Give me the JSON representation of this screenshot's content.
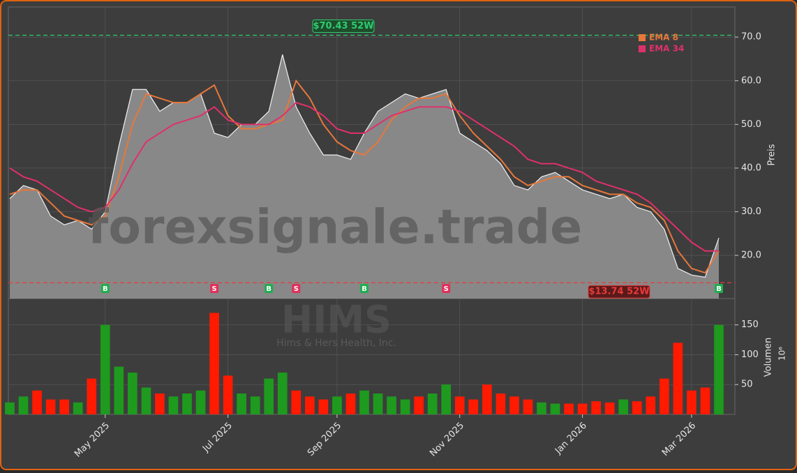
{
  "chart_data": {
    "type": "line",
    "watermark": "forexsignale.trade",
    "symbol": "HIMS",
    "company": "Hims & Hers Health, Inc.",
    "ylabel": "Preis",
    "categories": [
      null,
      null,
      null,
      null,
      null,
      null,
      null,
      "May 2025",
      null,
      null,
      null,
      null,
      null,
      null,
      null,
      null,
      "Jul 2025",
      null,
      null,
      null,
      null,
      null,
      null,
      null,
      "Sep 2025",
      null,
      null,
      null,
      null,
      null,
      null,
      null,
      null,
      "Nov 2025",
      null,
      null,
      null,
      null,
      null,
      null,
      null,
      null,
      "Jan 2026",
      null,
      null,
      null,
      null,
      null,
      null,
      null,
      "Mar 2026",
      null,
      null
    ],
    "series": [
      {
        "color": "#f0f0f0",
        "values": [
          33,
          36,
          35,
          29,
          27,
          28,
          26,
          30,
          45,
          58,
          58,
          53,
          55,
          55,
          57,
          48,
          47,
          50,
          50,
          53,
          66,
          54,
          48,
          43,
          43,
          42,
          48,
          53,
          55,
          57,
          56,
          57,
          58,
          48,
          46,
          44,
          41,
          36,
          35,
          38,
          39,
          37,
          35,
          34,
          33,
          34,
          31,
          30,
          26,
          17,
          15.5,
          15,
          24
        ]
      },
      {
        "name": "EMA 8",
        "color": "#e8773a",
        "values": [
          34,
          35,
          35,
          32,
          29,
          28,
          27,
          29,
          38,
          50,
          57,
          56,
          55,
          55,
          57,
          59,
          52,
          49,
          49,
          50,
          51,
          60,
          56,
          50,
          46,
          44,
          43,
          46,
          51,
          54,
          56,
          56,
          57,
          52,
          48,
          45,
          42,
          38,
          36,
          37,
          38,
          38,
          36,
          35,
          34,
          34,
          32,
          31,
          28,
          21,
          17,
          16,
          21
        ]
      },
      {
        "name": "EMA 34",
        "color": "#e0306a",
        "values": [
          40,
          38,
          37,
          35,
          33,
          31,
          30,
          31,
          35,
          41,
          46,
          48,
          50,
          51,
          52,
          54,
          51,
          50,
          50,
          50,
          52,
          55,
          54,
          52,
          49,
          48,
          48,
          50,
          52,
          53,
          54,
          54,
          54,
          53,
          51,
          49,
          47,
          45,
          42,
          41,
          41,
          40,
          39,
          37,
          36,
          35,
          34,
          32,
          29,
          26,
          23,
          21,
          21
        ]
      }
    ],
    "ylim": [
      10.1,
      76.9
    ],
    "yticks": [
      {
        "value": 20,
        "label": "20.0"
      },
      {
        "value": 30,
        "label": "30.0"
      },
      {
        "value": 40,
        "label": "40.0"
      },
      {
        "value": 50,
        "label": "50.0"
      },
      {
        "value": 60,
        "label": "60.0"
      },
      {
        "value": 70,
        "label": "70.0"
      }
    ],
    "grid": true,
    "high_52w": {
      "value": 70.43,
      "label": "$70.43 52W",
      "color": "#2ecc71"
    },
    "low_52w": {
      "value": 13.74,
      "label": "$13.74 52W",
      "color": "#e83a3a"
    },
    "signals": [
      null,
      null,
      null,
      null,
      null,
      null,
      null,
      "B",
      null,
      null,
      null,
      null,
      null,
      null,
      null,
      "S",
      null,
      null,
      null,
      "B",
      null,
      "S",
      null,
      null,
      null,
      null,
      "B",
      null,
      null,
      null,
      null,
      null,
      "S",
      null,
      null,
      null,
      null,
      null,
      null,
      null,
      null,
      null,
      null,
      null,
      null,
      null,
      null,
      null,
      null,
      null,
      null,
      null,
      "B"
    ],
    "buy_color": "#1fae50",
    "sell_color": "#e0305a",
    "volume": {
      "ylabel": "Volumen",
      "unit": "10⁶",
      "up_color": "#1e9a1e",
      "down_color": "#ff1a00",
      "values": [
        20,
        30,
        40,
        25,
        25,
        20,
        60,
        150,
        80,
        70,
        45,
        35,
        30,
        35,
        40,
        170,
        65,
        35,
        30,
        60,
        70,
        40,
        30,
        25,
        30,
        35,
        40,
        35,
        30,
        25,
        30,
        35,
        50,
        30,
        25,
        50,
        35,
        30,
        25,
        20,
        18,
        18,
        18,
        22,
        20,
        25,
        22,
        30,
        60,
        120,
        40,
        45,
        150
      ],
      "ylim": [
        0,
        194
      ],
      "yticks": [
        50,
        100,
        150
      ]
    }
  }
}
